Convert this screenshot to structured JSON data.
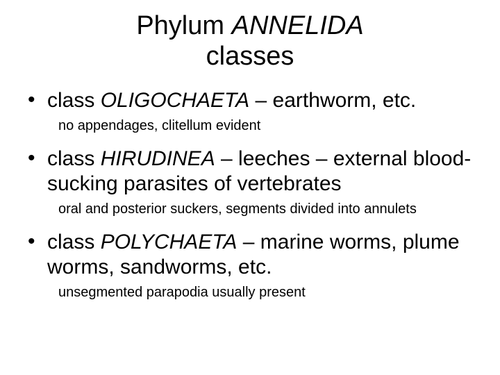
{
  "title": {
    "prefix": "Phylum ",
    "name": "ANNELIDA",
    "line2": "classes"
  },
  "items": [
    {
      "cls_word": "class ",
      "cls_name": "OLIGOCHAETA",
      "rest": " – earthworm, etc.",
      "sub": "no appendages, clitellum evident"
    },
    {
      "cls_word": "class ",
      "cls_name": "HIRUDINEA",
      "rest": " – leeches – external blood-sucking parasites of vertebrates",
      "sub": "oral and posterior suckers, segments divided into annulets"
    },
    {
      "cls_word": "class ",
      "cls_name": "POLYCHAETA",
      "rest": " – marine worms, plume worms, sandworms, etc.",
      "sub": "unsegmented parapodia usually present"
    }
  ],
  "colors": {
    "background": "#ffffff",
    "text": "#000000"
  },
  "typography": {
    "title_fontsize_pt": 29,
    "body_fontsize_pt": 23,
    "sub_fontsize_pt": 15,
    "font_family": "Arial"
  }
}
